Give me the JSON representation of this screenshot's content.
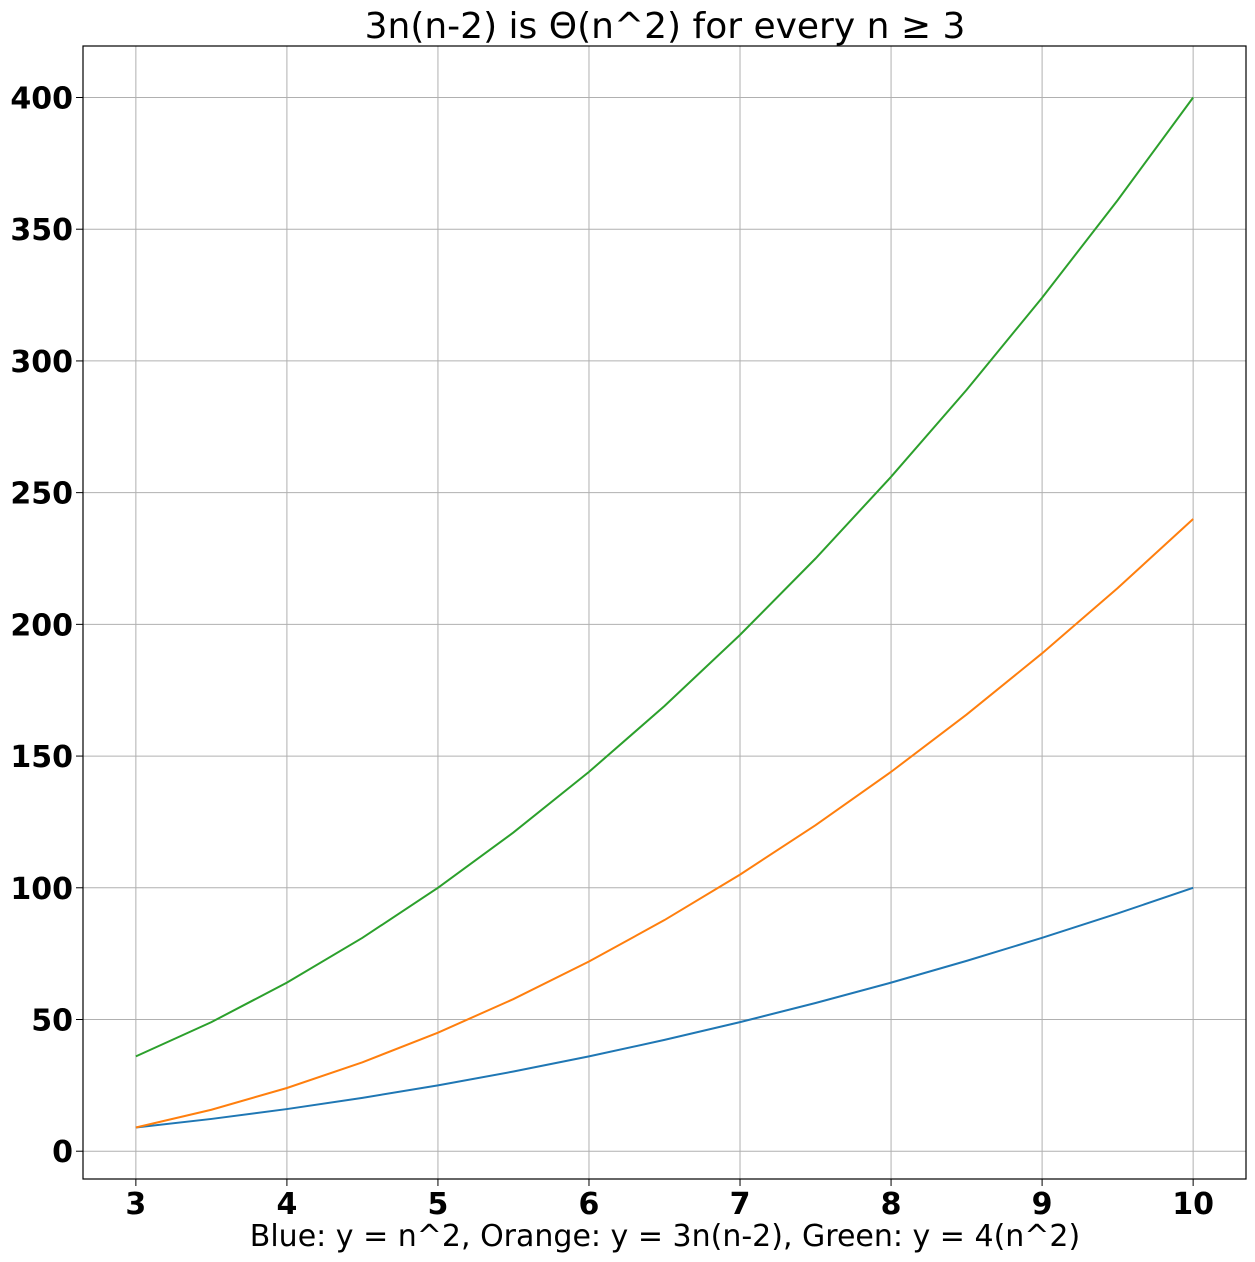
{
  "chart_data": {
    "type": "line",
    "title": "3n(n-2) is Θ(n^2) for every n ≥ 3",
    "xlabel": "Blue: y = n^2, Orange: y = 3n(n-2), Green: y = 4(n^2)",
    "ylabel": "",
    "xlim": [
      2.65,
      10.35
    ],
    "ylim": [
      -10.55,
      419.55
    ],
    "xticks": [
      3,
      4,
      5,
      6,
      7,
      8,
      9,
      10
    ],
    "xtick_labels": [
      "3",
      "4",
      "5",
      "6",
      "7",
      "8",
      "9",
      "10"
    ],
    "yticks": [
      0,
      50,
      100,
      150,
      200,
      250,
      300,
      350,
      400
    ],
    "ytick_labels": [
      "0",
      "50",
      "100",
      "150",
      "200",
      "250",
      "300",
      "350",
      "400"
    ],
    "grid": true,
    "x": [
      3,
      3.5,
      4,
      4.5,
      5,
      5.5,
      6,
      6.5,
      7,
      7.5,
      8,
      8.5,
      9,
      9.5,
      10
    ],
    "series": [
      {
        "color": "#1f77b4",
        "values": [
          9,
          12.25,
          16,
          20.25,
          25,
          30.25,
          36,
          42.25,
          49,
          56.25,
          64,
          72.25,
          81,
          90.25,
          100
        ]
      },
      {
        "color": "#ff7f0e",
        "values": [
          9,
          15.75,
          24,
          33.75,
          45,
          57.75,
          72,
          87.75,
          105,
          123.75,
          144,
          165.75,
          189,
          213.75,
          240
        ]
      },
      {
        "color": "#2ca02c",
        "values": [
          36,
          49,
          64,
          81,
          100,
          121,
          144,
          169,
          196,
          225,
          256,
          289,
          324,
          361,
          400
        ]
      }
    ]
  }
}
